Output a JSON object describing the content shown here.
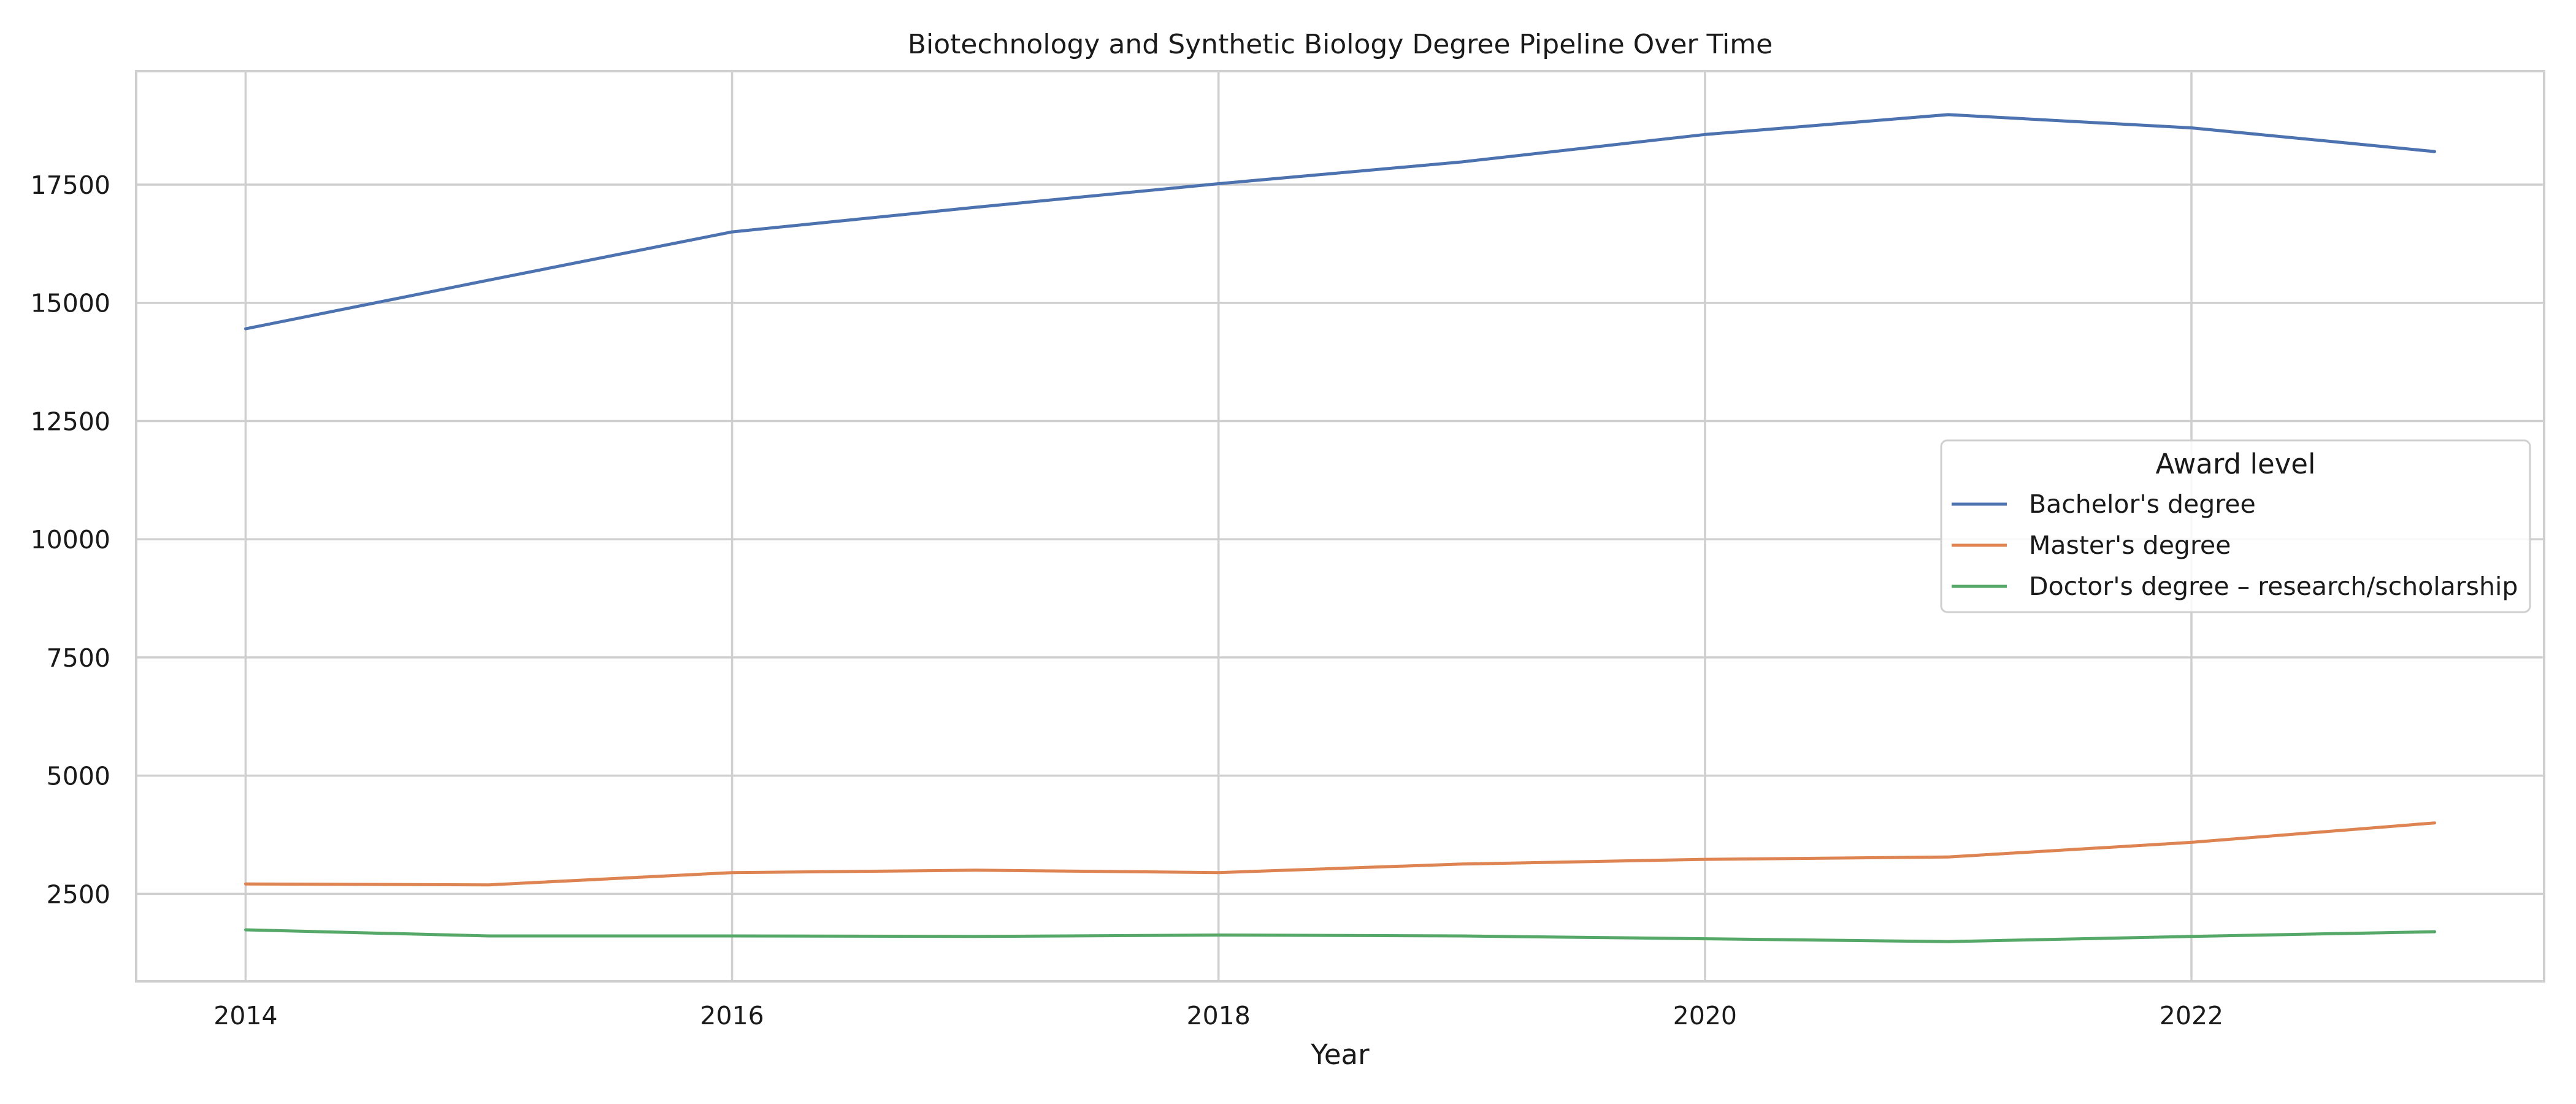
{
  "chart_data": {
    "type": "line",
    "title": "Biotechnology and Synthetic Biology Degree Pipeline Over Time",
    "xlabel": "Year",
    "ylabel": "",
    "x": [
      2014,
      2015,
      2016,
      2017,
      2018,
      2019,
      2020,
      2021,
      2022,
      2023
    ],
    "x_ticks": [
      "2014",
      "2016",
      "2018",
      "2020",
      "2022"
    ],
    "y_ticks": [
      "2500",
      "5000",
      "7500",
      "10000",
      "12500",
      "15000",
      "17500"
    ],
    "xlim": [
      2013.55,
      2023.45
    ],
    "ylim": [
      650,
      19900
    ],
    "grid": true,
    "legend": {
      "title": "Award level",
      "placement": "center-right"
    },
    "series": [
      {
        "name": "Bachelor's degree",
        "color": "#4c72b0",
        "values": [
          14450,
          15480,
          16500,
          17020,
          17520,
          17980,
          18560,
          18980,
          18700,
          18200
        ]
      },
      {
        "name": "Master's degree",
        "color": "#dd8452",
        "values": [
          2710,
          2690,
          2950,
          3000,
          2950,
          3130,
          3230,
          3280,
          3590,
          4000
        ]
      },
      {
        "name": "Doctor's degree – research/scholarship",
        "color": "#55a868",
        "values": [
          1740,
          1610,
          1610,
          1600,
          1630,
          1610,
          1550,
          1490,
          1600,
          1700
        ]
      }
    ]
  }
}
